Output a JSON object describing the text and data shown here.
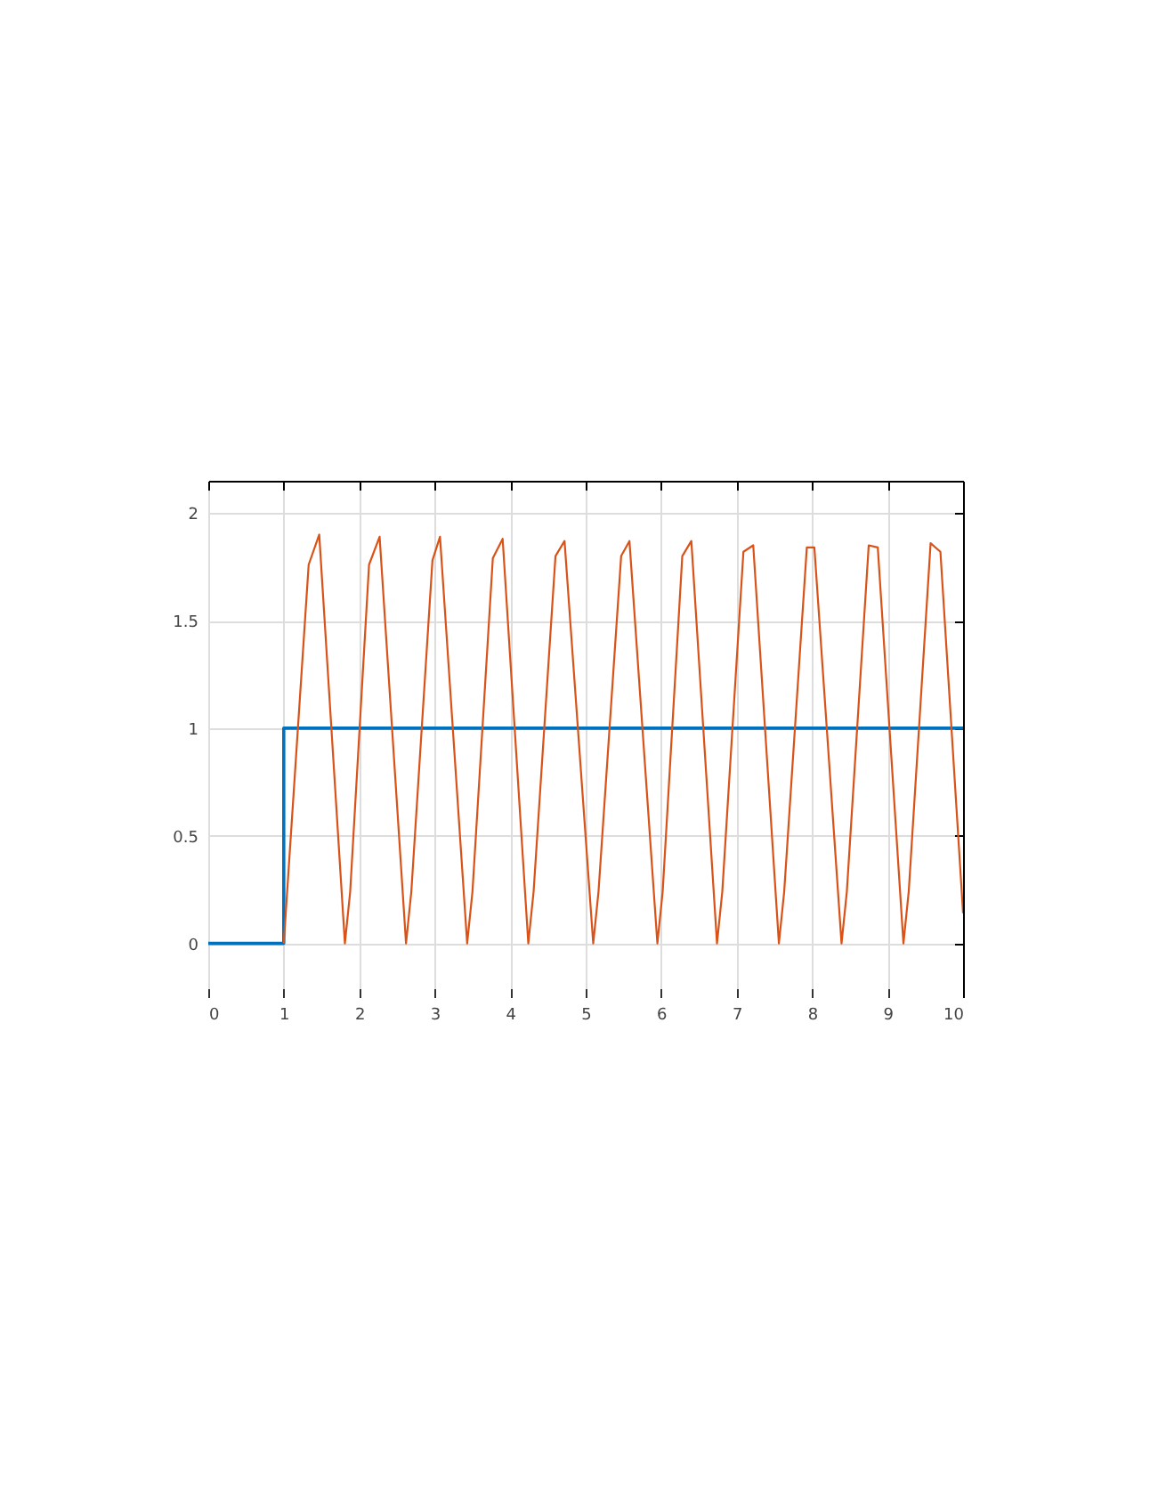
{
  "chart_data": {
    "type": "line",
    "xlim": [
      0,
      10
    ],
    "ylim": [
      -0.25,
      2.15
    ],
    "xticks": [
      0,
      1,
      2,
      3,
      4,
      5,
      6,
      7,
      8,
      9,
      10
    ],
    "yticks": [
      0,
      0.5,
      1,
      1.5,
      2
    ],
    "grid": true,
    "series": [
      {
        "type": "step",
        "color": "#0072bd",
        "x": [
          0,
          1,
          10
        ],
        "values": [
          0,
          1,
          1
        ]
      },
      {
        "type": "line",
        "color": "#d95319",
        "x": [
          1,
          1.33,
          1.47,
          1.81,
          1.88,
          2.13,
          2.27,
          2.62,
          2.69,
          2.97,
          3.07,
          3.43,
          3.5,
          3.77,
          3.9,
          4.24,
          4.31,
          4.6,
          4.72,
          5.1,
          5.17,
          5.47,
          5.58,
          5.95,
          6.02,
          6.28,
          6.4,
          6.74,
          6.81,
          7.09,
          7.22,
          7.56,
          7.63,
          7.93,
          8.03,
          8.39,
          8.46,
          8.75,
          8.87,
          9.21,
          9.28,
          9.57,
          9.7,
          10
        ],
        "values": [
          0,
          1.76,
          1.9,
          0,
          0.24,
          1.76,
          1.89,
          0,
          0.24,
          1.78,
          1.89,
          0,
          0.24,
          1.79,
          1.88,
          0,
          0.24,
          1.8,
          1.87,
          0,
          0.24,
          1.8,
          1.87,
          0,
          0.24,
          1.8,
          1.87,
          0,
          0.24,
          1.82,
          1.85,
          0,
          0.24,
          1.84,
          1.84,
          0,
          0.24,
          1.85,
          1.84,
          0,
          0.24,
          1.86,
          1.82,
          0.14
        ]
      }
    ]
  }
}
